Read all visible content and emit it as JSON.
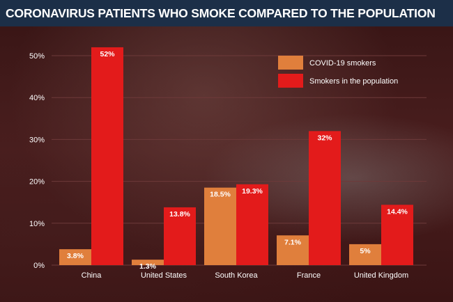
{
  "title": "CORONAVIRUS PATIENTS WHO SMOKE COMPARED TO THE POPULATION",
  "colors": {
    "covid_smokers": "#e07f3c",
    "population_smokers": "#e31b1b",
    "axis_text": "#ffffff",
    "grid": "#6e3a3a"
  },
  "chart_data": {
    "type": "bar",
    "title": "CORONAVIRUS PATIENTS WHO SMOKE COMPARED TO THE POPULATION",
    "categories": [
      "China",
      "United States",
      "South Korea",
      "France",
      "United Kingdom"
    ],
    "series": [
      {
        "name": "COVID-19 smokers",
        "values": [
          3.8,
          1.3,
          18.5,
          7.1,
          5
        ],
        "labels": [
          "3.8%",
          "1.3%",
          "18.5%",
          "7.1%",
          "5%"
        ]
      },
      {
        "name": "Smokers in the population",
        "values": [
          52,
          13.8,
          19.3,
          32,
          14.4
        ],
        "labels": [
          "52%",
          "13.8%",
          "19.3%",
          "32%",
          "14.4%"
        ]
      }
    ],
    "yticks": [
      "0%",
      "10%",
      "20%",
      "30%",
      "40%",
      "50%"
    ],
    "ylim": [
      0,
      50
    ],
    "grid": true,
    "legend": "top-right",
    "xlabel": "",
    "ylabel": ""
  }
}
